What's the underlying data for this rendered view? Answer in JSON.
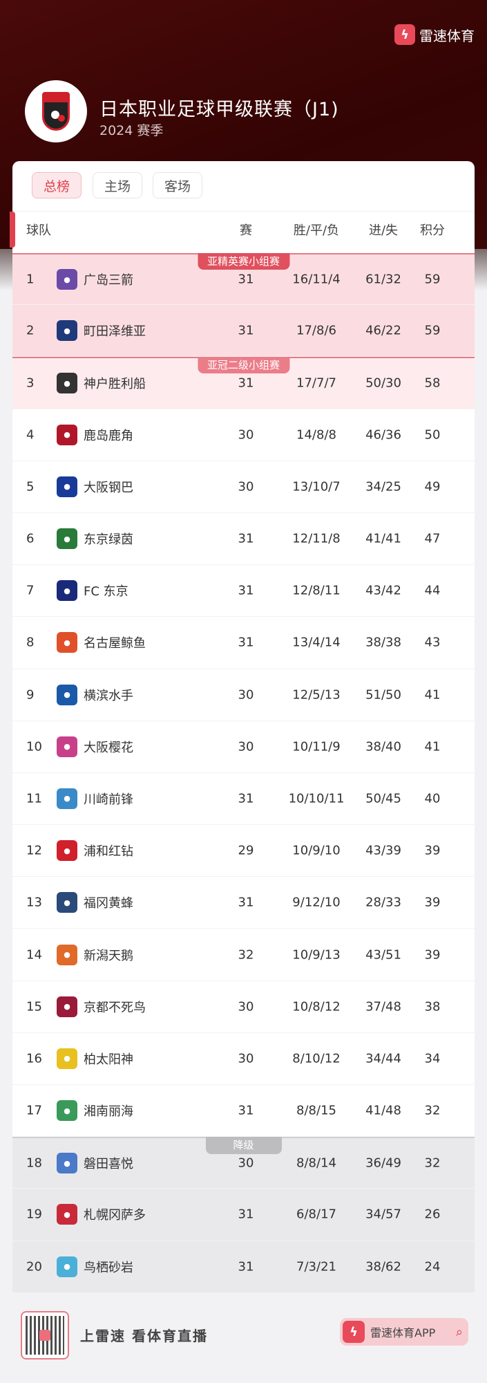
{
  "brand": {
    "name": "雷速体育",
    "icon": "lightning-icon"
  },
  "league": {
    "title": "日本职业足球甲级联赛（J1)",
    "season": "2024 赛季"
  },
  "tabs": [
    {
      "label": "总榜",
      "active": true
    },
    {
      "label": "主场"
    },
    {
      "label": "客场"
    }
  ],
  "columns": {
    "team": "球队",
    "played": "赛",
    "wdl": "胜/平/负",
    "goals": "进/失",
    "points": "积分"
  },
  "zones": {
    "acl_elite": "亚精英赛小组赛",
    "acl2": "亚冠二级小组赛",
    "relegation": "降级"
  },
  "colors": {
    "accent": "#e0404e",
    "acl_bg": "#fbdde1",
    "acl2_bg": "#fdebed",
    "relegation_bg": "#e9e9eb"
  },
  "rows": [
    {
      "rank": "1",
      "team": "广岛三箭",
      "p": "31",
      "wdl": "16/11/4",
      "goals": "61/32",
      "pts": "59",
      "zone": "acl",
      "logo": "#6b4aa8"
    },
    {
      "rank": "2",
      "team": "町田泽维亚",
      "p": "31",
      "wdl": "17/8/6",
      "goals": "46/22",
      "pts": "59",
      "zone": "acl",
      "logo": "#1f3a7a"
    },
    {
      "rank": "3",
      "team": "神户胜利船",
      "p": "31",
      "wdl": "17/7/7",
      "goals": "50/30",
      "pts": "58",
      "zone": "acl2",
      "logo": "#333333"
    },
    {
      "rank": "4",
      "team": "鹿岛鹿角",
      "p": "30",
      "wdl": "14/8/8",
      "goals": "46/36",
      "pts": "50",
      "logo": "#b0182a"
    },
    {
      "rank": "5",
      "team": "大阪钢巴",
      "p": "30",
      "wdl": "13/10/7",
      "goals": "34/25",
      "pts": "49",
      "logo": "#1a3a9a"
    },
    {
      "rank": "6",
      "team": "东京绿茵",
      "p": "31",
      "wdl": "12/11/8",
      "goals": "41/41",
      "pts": "47",
      "logo": "#2a7a3a"
    },
    {
      "rank": "7",
      "team": "FC 东京",
      "p": "31",
      "wdl": "12/8/11",
      "goals": "43/42",
      "pts": "44",
      "logo": "#1a2a7a"
    },
    {
      "rank": "8",
      "team": "名古屋鲸鱼",
      "p": "31",
      "wdl": "13/4/14",
      "goals": "38/38",
      "pts": "43",
      "logo": "#e0502a"
    },
    {
      "rank": "9",
      "team": "横滨水手",
      "p": "30",
      "wdl": "12/5/13",
      "goals": "51/50",
      "pts": "41",
      "logo": "#1a5aa8"
    },
    {
      "rank": "10",
      "team": "大阪樱花",
      "p": "30",
      "wdl": "10/11/9",
      "goals": "38/40",
      "pts": "41",
      "logo": "#c8408a"
    },
    {
      "rank": "11",
      "team": "川崎前锋",
      "p": "31",
      "wdl": "10/10/11",
      "goals": "50/45",
      "pts": "40",
      "logo": "#3a8ac8"
    },
    {
      "rank": "12",
      "team": "浦和红钻",
      "p": "29",
      "wdl": "10/9/10",
      "goals": "43/39",
      "pts": "39",
      "logo": "#d0202b"
    },
    {
      "rank": "13",
      "team": "福冈黄蜂",
      "p": "31",
      "wdl": "9/12/10",
      "goals": "28/33",
      "pts": "39",
      "logo": "#2a4a7a"
    },
    {
      "rank": "14",
      "team": "新潟天鹅",
      "p": "32",
      "wdl": "10/9/13",
      "goals": "43/51",
      "pts": "39",
      "logo": "#e06a2a"
    },
    {
      "rank": "15",
      "team": "京都不死鸟",
      "p": "30",
      "wdl": "10/8/12",
      "goals": "37/48",
      "pts": "38",
      "logo": "#9a1a3a"
    },
    {
      "rank": "16",
      "team": "柏太阳神",
      "p": "30",
      "wdl": "8/10/12",
      "goals": "34/44",
      "pts": "34",
      "logo": "#e8c020"
    },
    {
      "rank": "17",
      "team": "湘南丽海",
      "p": "31",
      "wdl": "8/8/15",
      "goals": "41/48",
      "pts": "32",
      "logo": "#3a9a5a"
    },
    {
      "rank": "18",
      "team": "磐田喜悦",
      "p": "30",
      "wdl": "8/8/14",
      "goals": "36/49",
      "pts": "32",
      "zone": "rel",
      "logo": "#4a7ac8"
    },
    {
      "rank": "19",
      "team": "札幌冈萨多",
      "p": "31",
      "wdl": "6/8/17",
      "goals": "34/57",
      "pts": "26",
      "zone": "rel",
      "logo": "#c82a3a"
    },
    {
      "rank": "20",
      "team": "鸟栖砂岩",
      "p": "31",
      "wdl": "7/3/21",
      "goals": "38/62",
      "pts": "24",
      "zone": "rel",
      "logo": "#4ab0d8"
    }
  ],
  "footer": {
    "slogan": "上雷速  看体育直播",
    "app_label": "雷速体育APP",
    "search_icon": "search-icon"
  }
}
